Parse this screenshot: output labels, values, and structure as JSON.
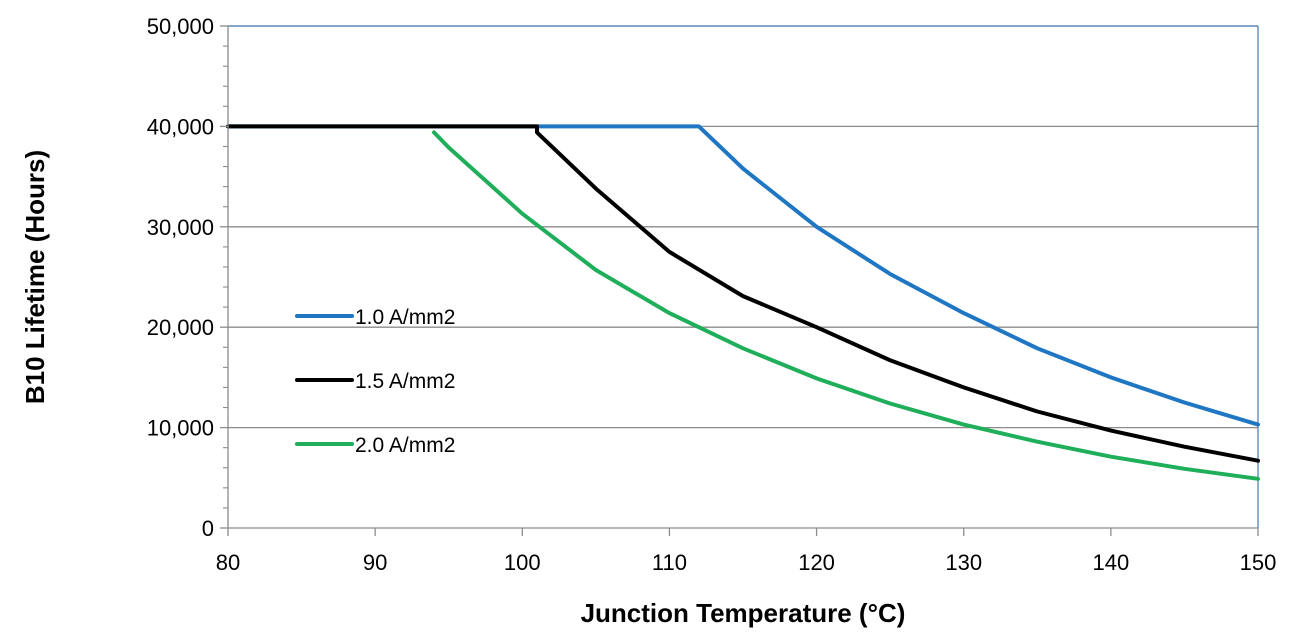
{
  "chart_data": {
    "type": "line",
    "xlabel": "Junction Temperature (°C)",
    "ylabel": "B10 Lifetime (Hours)",
    "xlim": [
      80,
      150
    ],
    "ylim": [
      0,
      50000
    ],
    "x_ticks": [
      "80",
      "90",
      "100",
      "110",
      "120",
      "130",
      "140",
      "150"
    ],
    "y_ticks": [
      "0",
      "10,000",
      "20,000",
      "30,000",
      "40,000",
      "50,000"
    ],
    "grid": "horizontal",
    "legend_position": "left-center",
    "colors": {
      "1.0 A/mm2": "#1f77c4",
      "1.5 A/mm2": "#000000",
      "2.0 A/mm2": "#1fae5a",
      "grid": "#8c8c8c",
      "plot_border": "#4f81bd"
    },
    "series": [
      {
        "name": "1.0 A/mm2",
        "color": "#1f77c4",
        "x": [
          80,
          112,
          115,
          120,
          125,
          130,
          135,
          140,
          145,
          150
        ],
        "y": [
          40000,
          40000,
          35800,
          30000,
          25300,
          21400,
          17900,
          15000,
          12500,
          10300
        ]
      },
      {
        "name": "1.5 A/mm2",
        "color": "#000000",
        "x": [
          80,
          101,
          101,
          105,
          110,
          115,
          120,
          125,
          130,
          135,
          140,
          145,
          150
        ],
        "y": [
          40000,
          40000,
          39400,
          33800,
          27500,
          23100,
          20000,
          16700,
          14000,
          11600,
          9700,
          8100,
          6700
        ]
      },
      {
        "name": "2.0 A/mm2",
        "color": "#1fae5a",
        "x": [
          94,
          95,
          100,
          105,
          110,
          115,
          120,
          125,
          130,
          135,
          140,
          145,
          150
        ],
        "y": [
          39400,
          37900,
          31300,
          25700,
          21400,
          17900,
          14900,
          12400,
          10300,
          8600,
          7100,
          5900,
          4900
        ]
      }
    ]
  }
}
